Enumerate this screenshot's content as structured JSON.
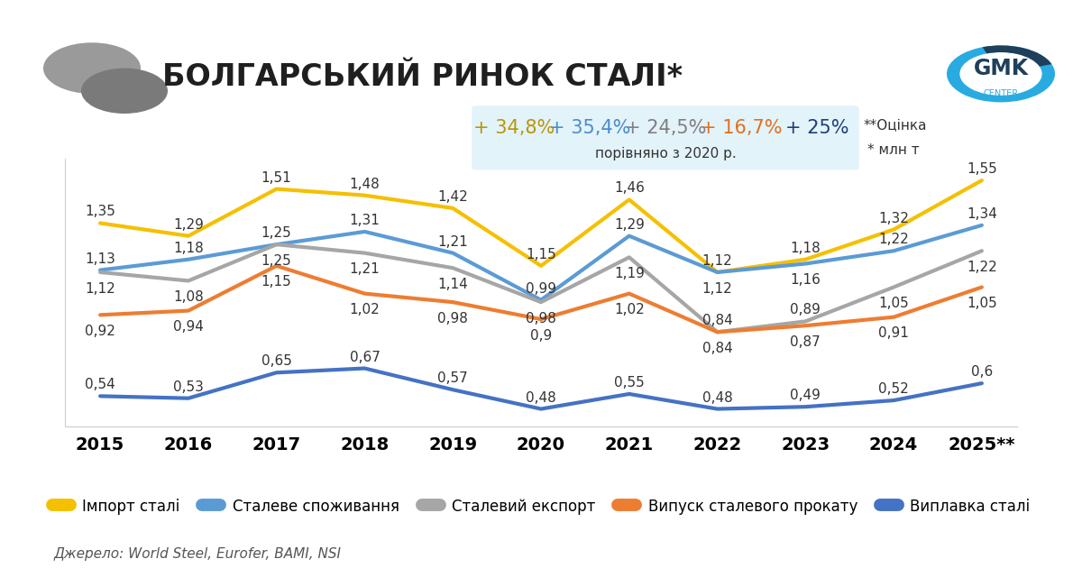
{
  "logo": [
    "GMK",
    "CENTER"
  ],
  "chart_data": {
    "type": "line",
    "title": "БОЛГАРСЬКИЙ РИНОК СТАЛІ*",
    "categories": [
      "2015",
      "2016",
      "2017",
      "2018",
      "2019",
      "2020",
      "2021",
      "2022",
      "2023",
      "2024",
      "2025**"
    ],
    "series": [
      {
        "name": "Імпорт сталі",
        "color": "#F5C000",
        "values": [
          1.35,
          1.29,
          1.51,
          1.48,
          1.42,
          1.15,
          1.46,
          1.12,
          1.18,
          1.32,
          1.55
        ],
        "value_labels": [
          "1,35",
          "1,29",
          "1,51",
          "1,48",
          "1,42",
          "1,15",
          "1,46",
          "1,12",
          "1,18",
          "1,32",
          "1,55"
        ]
      },
      {
        "name": "Сталеве споживання",
        "color": "#5B9BD5",
        "values": [
          1.13,
          1.18,
          1.25,
          1.31,
          1.21,
          0.99,
          1.29,
          1.12,
          1.16,
          1.22,
          1.34
        ],
        "value_labels": [
          "1,13",
          "1,18",
          "1,25",
          "1,31",
          "1,21",
          "0,99",
          "1,29",
          "1,12",
          "1,16",
          "1,22",
          "1,34"
        ]
      },
      {
        "name": "Сталевий експорт",
        "color": "#A6A6A6",
        "values": [
          1.12,
          1.08,
          1.25,
          1.21,
          1.14,
          0.98,
          1.19,
          0.84,
          0.89,
          1.05,
          1.22
        ],
        "value_labels": [
          "1,12",
          "1,08",
          "1,25",
          "1,21",
          "1,14",
          "0,98",
          "1,19",
          "0,84",
          "0,89",
          "1,05",
          "1,22"
        ]
      },
      {
        "name": "Випуск сталевого прокату",
        "color": "#ED7D31",
        "values": [
          0.92,
          0.94,
          1.15,
          1.02,
          0.98,
          0.9,
          1.02,
          0.84,
          0.87,
          0.91,
          1.05
        ],
        "value_labels": [
          "0,92",
          "0,94",
          "1,15",
          "1,02",
          "0,98",
          "0,9",
          "1,02",
          "0,84",
          "0,87",
          "0,91",
          "1,05"
        ]
      },
      {
        "name": "Виплавка сталі",
        "color": "#4472C4",
        "values": [
          0.54,
          0.53,
          0.65,
          0.67,
          0.57,
          0.48,
          0.55,
          0.48,
          0.49,
          0.52,
          0.6
        ],
        "value_labels": [
          "0,54",
          "0,53",
          "0,65",
          "0,67",
          "0,57",
          "0,48",
          "0,55",
          "0,48",
          "0,49",
          "0,52",
          "0,6"
        ]
      }
    ],
    "ylim": [
      0.4,
      1.65
    ],
    "tick_labels": "x",
    "data_labels": true,
    "grid": false,
    "legend": "lower center",
    "annotations": {
      "changes": [
        {
          "text": "+ 34,8%",
          "color": "#B8960A"
        },
        {
          "text": "+ 35,4%",
          "color": "#4A8CCB"
        },
        {
          "text": "+ 24,5%",
          "color": "#7F7F7F"
        },
        {
          "text": "+ 16,7%",
          "color": "#E0701F"
        },
        {
          "text": "+ 25%",
          "color": "#1F3F7A"
        }
      ],
      "note": "порівняно з 2020 р.",
      "footnotes": [
        "**Оцінка",
        "* млн т"
      ]
    },
    "source": "Джерело: World Steel, Eurofer, BAMI, NSI"
  }
}
